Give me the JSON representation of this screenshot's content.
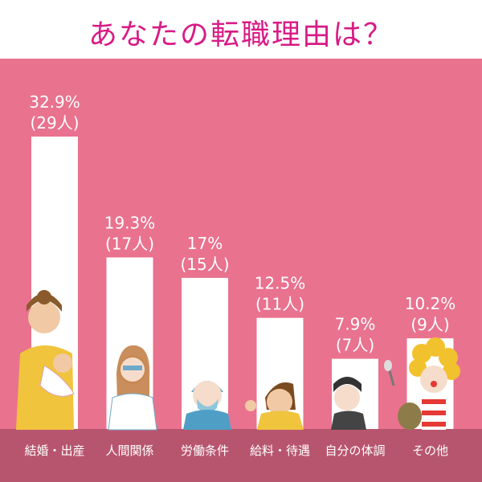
{
  "title": "あなたの転職理由は？",
  "colors": {
    "title": "#d81b86",
    "panel": "#e9728f",
    "footer": "#b8556e",
    "bar": "#ffffff"
  },
  "chart_data": {
    "type": "bar",
    "title": "あなたの転職理由は？",
    "xlabel": "",
    "ylabel": "",
    "categories": [
      "結婚・出産",
      "人間関係",
      "労働条件",
      "給料・待遇",
      "自分の体調",
      "その他"
    ],
    "values": [
      32.9,
      19.3,
      17,
      12.5,
      7.9,
      10.2
    ],
    "counts": [
      29,
      17,
      15,
      11,
      7,
      9
    ],
    "percent_labels": [
      "32.9%",
      "19.3%",
      "17%",
      "12.5%",
      "7.9%",
      "10.2%"
    ],
    "count_labels": [
      "(29人)",
      "(17人)",
      "(15人)",
      "(11人)",
      "(7人)",
      "(9人)"
    ],
    "grid": false,
    "legend": "none"
  }
}
